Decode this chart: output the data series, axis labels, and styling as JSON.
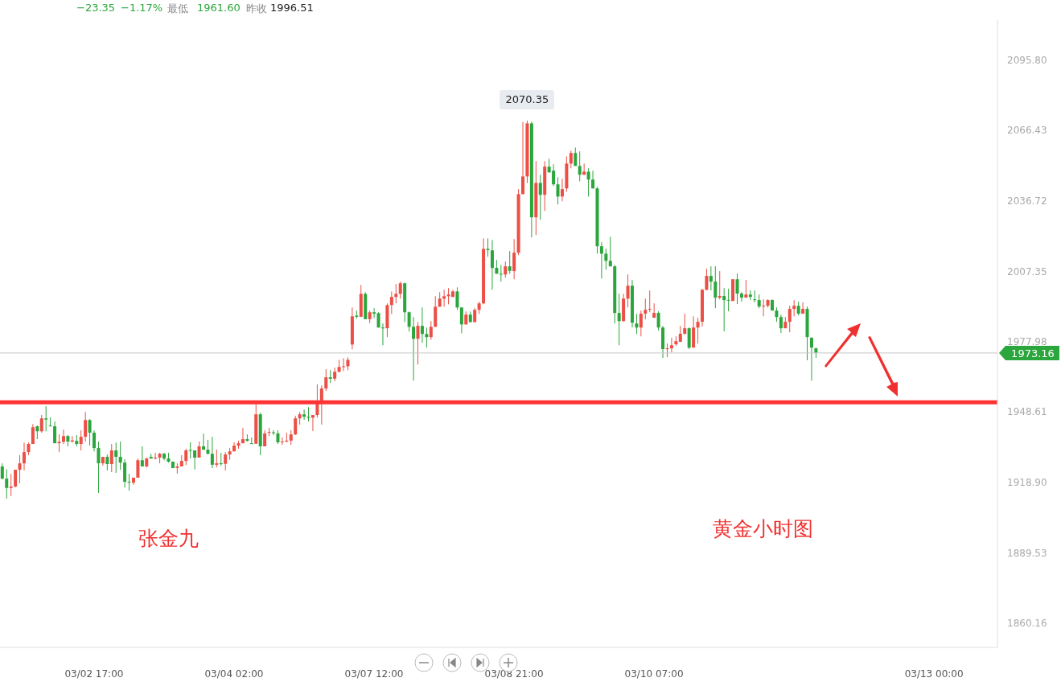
{
  "chart_data": {
    "type": "candlestick",
    "categories": [
      null,
      null,
      null,
      null,
      null,
      null,
      null,
      null,
      null,
      null,
      null,
      null,
      null,
      null,
      null,
      null,
      null,
      null,
      null,
      null,
      null,
      "03/02 17:00",
      null,
      null,
      null,
      null,
      null,
      null,
      null,
      null,
      null,
      null,
      null,
      null,
      null,
      null,
      null,
      null,
      null,
      null,
      null,
      null,
      null,
      null,
      null,
      null,
      null,
      null,
      null,
      null,
      null,
      null,
      null,
      "03/04 02:00",
      null,
      null,
      null,
      null,
      null,
      null,
      null,
      null,
      null,
      null,
      null,
      null,
      null,
      null,
      null,
      null,
      null,
      null,
      null,
      null,
      null,
      null,
      null,
      null,
      null,
      null,
      null,
      null,
      null,
      null,
      null,
      "03/07 12:00",
      null,
      null,
      null,
      null,
      null,
      null,
      null,
      null,
      null,
      null,
      null,
      null,
      null,
      null,
      null,
      null,
      null,
      null,
      null,
      null,
      null,
      null,
      null,
      null,
      null,
      null,
      null,
      null,
      null,
      null,
      null,
      "03/08 21:00",
      null,
      null,
      null,
      null,
      null,
      null,
      null,
      null,
      null,
      null,
      null,
      null,
      null,
      null,
      null,
      null,
      null,
      null,
      null,
      null,
      null,
      null,
      null,
      null,
      null,
      null,
      null,
      null,
      null,
      null,
      null,
      "03/10 07:00",
      null,
      null,
      null,
      null,
      null,
      null,
      null,
      null,
      null,
      null,
      null,
      null,
      null,
      null,
      null,
      null,
      null,
      null,
      null,
      null,
      null,
      null,
      null,
      null,
      null,
      null,
      null,
      null,
      null,
      null,
      null,
      null,
      null,
      null,
      null,
      null,
      null,
      null,
      null,
      null,
      null,
      null,
      null,
      null,
      null,
      null,
      null,
      null,
      null,
      null,
      null,
      null,
      null,
      null,
      null,
      null,
      null,
      null,
      null,
      null,
      null,
      null,
      null,
      "03/13 00:00",
      null,
      null,
      null,
      null,
      null,
      null,
      null,
      null,
      null,
      null,
      null,
      null,
      null,
      null
    ],
    "ohlc": [
      [
        1925.7,
        1927.0,
        1920.3,
        1920.6
      ],
      [
        1920.6,
        1924.5,
        1912.2,
        1916.7
      ],
      [
        1916.7,
        1922.6,
        1913.3,
        1917.3
      ],
      [
        1917.3,
        1924.3,
        1916.9,
        1924.3
      ],
      [
        1924.3,
        1930.4,
        1918.7,
        1927.0
      ],
      [
        1927.0,
        1935.7,
        1924.0,
        1931.7
      ],
      [
        1931.7,
        1935.7,
        1930.4,
        1935.1
      ],
      [
        1935.1,
        1943.4,
        1935.1,
        1942.1
      ],
      [
        1942.5,
        1942.8,
        1937.1,
        1940.4
      ],
      [
        1940.4,
        1947.2,
        1939.8,
        1945.8
      ],
      [
        1945.8,
        1950.9,
        1940.4,
        1945.3
      ],
      [
        1942.8,
        1946.2,
        1942.6,
        1942.6
      ],
      [
        1942.5,
        1944.5,
        1935.4,
        1935.4
      ],
      [
        1935.4,
        1939.1,
        1931.7,
        1936.0
      ],
      [
        1936.0,
        1941.1,
        1935.1,
        1938.4
      ],
      [
        1938.4,
        1938.8,
        1934.1,
        1936.1
      ],
      [
        1936.1,
        1938.4,
        1935.7,
        1936.6
      ],
      [
        1936.4,
        1938.8,
        1934.1,
        1935.1
      ],
      [
        1935.1,
        1940.8,
        1932.4,
        1938.1
      ],
      [
        1938.1,
        1948.5,
        1936.1,
        1945.1
      ],
      [
        1945.1,
        1945.5,
        1934.4,
        1939.8
      ],
      [
        1939.8,
        1940.7,
        1932.0,
        1933.4
      ],
      [
        1933.4,
        1936.1,
        1914.6,
        1927.0
      ],
      [
        1927.0,
        1929.7,
        1926.0,
        1929.7
      ],
      [
        1929.7,
        1930.7,
        1924.0,
        1926.7
      ],
      [
        1926.7,
        1935.1,
        1923.3,
        1932.4
      ],
      [
        1932.4,
        1935.7,
        1923.0,
        1929.7
      ],
      [
        1929.7,
        1936.1,
        1924.3,
        1927.3
      ],
      [
        1927.3,
        1928.7,
        1916.9,
        1919.3
      ],
      [
        1919.3,
        1922.6,
        1915.6,
        1919.1
      ],
      [
        1918.9,
        1921.0,
        1918.0,
        1921.0
      ],
      [
        1921.0,
        1929.0,
        1921.0,
        1928.3
      ],
      [
        1928.3,
        1934.1,
        1925.7,
        1925.7
      ],
      [
        1925.7,
        1929.4,
        1925.3,
        1929.0
      ],
      [
        1929.7,
        1931.0,
        1929.0,
        1929.0
      ],
      [
        1929.0,
        1931.4,
        1928.7,
        1929.4
      ],
      [
        1929.4,
        1931.4,
        1927.0,
        1931.0
      ],
      [
        1931.0,
        1931.4,
        1928.3,
        1929.0
      ],
      [
        1929.0,
        1931.4,
        1927.3,
        1927.7
      ],
      [
        1927.7,
        1927.7,
        1925.0,
        1925.0
      ],
      [
        1925.1,
        1927.0,
        1922.7,
        1925.7
      ],
      [
        1925.7,
        1930.4,
        1925.7,
        1928.0
      ],
      [
        1928.0,
        1933.1,
        1926.3,
        1932.4
      ],
      [
        1932.6,
        1935.8,
        1929.0,
        1932.4
      ],
      [
        1932.4,
        1932.4,
        1924.4,
        1929.4
      ],
      [
        1929.4,
        1936.1,
        1929.4,
        1934.1
      ],
      [
        1934.1,
        1939.4,
        1932.7,
        1932.7
      ],
      [
        1932.7,
        1936.8,
        1930.7,
        1931.0
      ],
      [
        1931.0,
        1938.1,
        1925.0,
        1926.4
      ],
      [
        1926.4,
        1932.7,
        1925.3,
        1927.0
      ],
      [
        1927.0,
        1931.4,
        1926.0,
        1926.8
      ],
      [
        1926.8,
        1931.7,
        1924.0,
        1930.7
      ],
      [
        1930.7,
        1933.4,
        1928.5,
        1932.0
      ],
      [
        1932.0,
        1935.8,
        1932.0,
        1934.4
      ],
      [
        1934.4,
        1936.4,
        1933.1,
        1935.4
      ],
      [
        1935.4,
        1941.8,
        1935.4,
        1937.1
      ],
      [
        1937.1,
        1939.1,
        1936.1,
        1936.4
      ],
      [
        1935.4,
        1937.8,
        1935.2,
        1935.2
      ],
      [
        1935.2,
        1951.7,
        1935.2,
        1947.5
      ],
      [
        1947.5,
        1948.2,
        1930.4,
        1934.1
      ],
      [
        1934.1,
        1940.8,
        1934.1,
        1939.5
      ],
      [
        1939.8,
        1941.8,
        1938.4,
        1940.1
      ],
      [
        1940.0,
        1940.8,
        1938.8,
        1939.7
      ],
      [
        1939.5,
        1940.8,
        1935.1,
        1935.8
      ],
      [
        1935.8,
        1937.8,
        1934.7,
        1936.1
      ],
      [
        1936.1,
        1939.8,
        1935.8,
        1936.5
      ],
      [
        1936.5,
        1940.8,
        1934.7,
        1939.1
      ],
      [
        1939.1,
        1946.9,
        1938.8,
        1945.8
      ],
      [
        1945.8,
        1948.5,
        1943.2,
        1947.5
      ],
      [
        1947.5,
        1949.5,
        1945.2,
        1946.5
      ],
      [
        1946.5,
        1950.5,
        1944.5,
        1946.1
      ],
      [
        1946.1,
        1947.2,
        1940.5,
        1947.2
      ],
      [
        1947.2,
        1960.0,
        1946.2,
        1951.9
      ],
      [
        1951.9,
        1959.6,
        1943.2,
        1958.3
      ],
      [
        1958.3,
        1966.4,
        1957.3,
        1963.0
      ],
      [
        1963.0,
        1966.0,
        1960.6,
        1962.4
      ],
      [
        1962.4,
        1967.0,
        1961.3,
        1965.3
      ],
      [
        1965.3,
        1970.3,
        1965.0,
        1967.3
      ],
      [
        1967.3,
        1971.0,
        1965.6,
        1967.6
      ],
      [
        1967.6,
        1971.3,
        1966.0,
        1970.3
      ],
      [
        1976.7,
        1992.2,
        1974.7,
        1988.5
      ],
      [
        1988.8,
        1990.9,
        1987.5,
        1988.3
      ],
      [
        1988.3,
        2001.6,
        1988.3,
        1997.9
      ],
      [
        1997.9,
        1998.6,
        1987.3,
        1987.3
      ],
      [
        1987.3,
        1990.9,
        1985.6,
        1990.2
      ],
      [
        1990.2,
        1991.9,
        1987.8,
        1989.6
      ],
      [
        1989.8,
        1990.2,
        1983.8,
        1983.8
      ],
      [
        1983.8,
        1985.5,
        1976.4,
        1983.6
      ],
      [
        1983.5,
        1993.9,
        1979.8,
        1993.2
      ],
      [
        1993.2,
        1998.9,
        1989.5,
        1996.6
      ],
      [
        1996.6,
        2002.0,
        1993.9,
        1997.9
      ],
      [
        1997.9,
        2003.0,
        1995.9,
        2002.3
      ],
      [
        2002.3,
        2002.6,
        1986.1,
        1990.2
      ],
      [
        1990.2,
        1990.5,
        1982.1,
        1984.1
      ],
      [
        1984.1,
        1988.2,
        1961.6,
        1979.1
      ],
      [
        1979.1,
        1986.1,
        1968.3,
        1984.5
      ],
      [
        1984.5,
        1992.2,
        1977.4,
        1981.1
      ],
      [
        1981.1,
        1983.8,
        1975.4,
        1979.8
      ],
      [
        1979.8,
        1986.5,
        1978.7,
        1984.1
      ],
      [
        1984.1,
        1996.9,
        1984.1,
        1992.5
      ],
      [
        1992.5,
        1998.6,
        1992.5,
        1995.9
      ],
      [
        1995.9,
        1999.6,
        1992.5,
        1996.9
      ],
      [
        1996.9,
        2000.3,
        1993.5,
        1997.6
      ],
      [
        1996.6,
        1999.6,
        1996.6,
        1998.9
      ],
      [
        1998.9,
        2000.6,
        1991.2,
        1992.2
      ],
      [
        1992.2,
        1992.2,
        1981.4,
        1985.1
      ],
      [
        1985.1,
        1990.5,
        1985.1,
        1989.2
      ],
      [
        1989.2,
        1990.5,
        1985.8,
        1986.1
      ],
      [
        1986.1,
        1991.9,
        1985.8,
        1991.2
      ],
      [
        1991.2,
        1994.6,
        1989.5,
        1993.9
      ],
      [
        1993.9,
        2021.1,
        1993.5,
        2016.7
      ],
      [
        2016.7,
        2021.1,
        2013.4,
        2016.2
      ],
      [
        2016.1,
        2020.4,
        1999.6,
        2008.7
      ],
      [
        2008.8,
        2012.1,
        2006.3,
        2006.3
      ],
      [
        2006.3,
        2010.0,
        2003.0,
        2006.1
      ],
      [
        2006.0,
        2011.4,
        2004.7,
        2009.4
      ],
      [
        2009.4,
        2015.8,
        2006.3,
        2007.5
      ],
      [
        2007.4,
        2020.8,
        2004.0,
        2015.1
      ],
      [
        2015.1,
        2041.7,
        2014.1,
        2039.6
      ],
      [
        2039.6,
        2069.8,
        2039.6,
        2047.0
      ],
      [
        2047.0,
        2070.35,
        2044.3,
        2069.2
      ],
      [
        2069.2,
        2069.9,
        2021.5,
        2029.9
      ],
      [
        2029.9,
        2053.4,
        2022.5,
        2044.3
      ],
      [
        2044.3,
        2047.7,
        2028.9,
        2039.3
      ],
      [
        2039.3,
        2053.4,
        2032.6,
        2051.1
      ],
      [
        2051.1,
        2054.4,
        2048.7,
        2048.7
      ],
      [
        2049.4,
        2052.1,
        2043.0,
        2043.7
      ],
      [
        2043.7,
        2046.7,
        2035.3,
        2038.6
      ],
      [
        2038.6,
        2046.0,
        2036.6,
        2041.7
      ],
      [
        2042.0,
        2055.4,
        2040.6,
        2052.4
      ],
      [
        2052.4,
        2057.8,
        2050.4,
        2056.8
      ],
      [
        2056.8,
        2059.1,
        2051.4,
        2051.4
      ],
      [
        2051.4,
        2057.5,
        2045.0,
        2047.7
      ],
      [
        2047.7,
        2052.4,
        2047.7,
        2049.0
      ],
      [
        2049.0,
        2050.4,
        2038.6,
        2045.7
      ],
      [
        2045.7,
        2049.4,
        2042.0,
        2042.0
      ],
      [
        2042.0,
        2042.7,
        2014.7,
        2017.8
      ],
      [
        2017.8,
        2019.5,
        2004.3,
        2014.7
      ],
      [
        2014.7,
        2016.8,
        2008.0,
        2011.7
      ],
      [
        2011.7,
        2021.8,
        2009.4,
        2009.4
      ],
      [
        2009.4,
        2010.0,
        1985.5,
        1989.9
      ],
      [
        1989.9,
        1997.9,
        1976.4,
        1986.5
      ],
      [
        1986.5,
        1997.9,
        1986.2,
        1995.9
      ],
      [
        1995.9,
        2006.0,
        1992.2,
        2001.3
      ],
      [
        2001.3,
        2003.6,
        1983.8,
        1985.8
      ],
      [
        1985.5,
        1989.5,
        1981.1,
        1983.8
      ],
      [
        1983.8,
        1990.9,
        1980.1,
        1989.6
      ],
      [
        1989.6,
        1995.9,
        1987.2,
        1991.2
      ],
      [
        1991.4,
        1999.3,
        1990.2,
        1991.6
      ],
      [
        1987.9,
        1993.9,
        1987.9,
        1989.9
      ],
      [
        1989.9,
        1990.6,
        1982.5,
        1983.8
      ],
      [
        1983.8,
        1984.5,
        1971.1,
        1974.8
      ],
      [
        1974.8,
        1977.1,
        1971.4,
        1975.1
      ],
      [
        1975.1,
        1979.5,
        1973.4,
        1976.4
      ],
      [
        1976.8,
        1980.1,
        1976.1,
        1978.1
      ],
      [
        1977.8,
        1984.5,
        1977.8,
        1981.2
      ],
      [
        1981.2,
        1989.6,
        1980.8,
        1983.5
      ],
      [
        1983.5,
        1983.8,
        1974.8,
        1975.4
      ],
      [
        1975.4,
        1988.5,
        1975.4,
        1983.8
      ],
      [
        1983.8,
        1987.9,
        1977.1,
        1986.2
      ],
      [
        1986.2,
        2000.0,
        1984.2,
        1999.6
      ],
      [
        1999.6,
        2008.4,
        1999.3,
        2005.4
      ],
      [
        2005.4,
        2009.4,
        1999.3,
        2003.0
      ],
      [
        2003.0,
        2009.4,
        1991.9,
        1996.3
      ],
      [
        1996.3,
        2007.4,
        1995.6,
        1997.0
      ],
      [
        1997.0,
        2000.3,
        1982.2,
        1995.3
      ],
      [
        1995.4,
        2000.0,
        1990.6,
        1995.2
      ],
      [
        1994.9,
        2004.0,
        1994.9,
        2004.0
      ],
      [
        2004.0,
        2006.4,
        1993.6,
        1998.0
      ],
      [
        1998.0,
        1998.6,
        1994.6,
        1996.3
      ],
      [
        1996.3,
        2003.7,
        1996.3,
        1997.6
      ],
      [
        1997.6,
        1999.3,
        1995.3,
        1996.6
      ],
      [
        1995.6,
        1999.3,
        1994.3,
        1995.4
      ],
      [
        1995.3,
        1997.6,
        1991.9,
        1992.6
      ],
      [
        1992.6,
        1995.6,
        1988.5,
        1992.9
      ],
      [
        1992.9,
        1995.6,
        1992.2,
        1995.3
      ],
      [
        1995.3,
        1995.6,
        1990.9,
        1990.9
      ],
      [
        1990.9,
        1992.2,
        1986.2,
        1988.2
      ],
      [
        1988.2,
        1989.2,
        1981.5,
        1983.5
      ],
      [
        1983.5,
        1988.2,
        1983.5,
        1986.2
      ],
      [
        1986.2,
        1992.9,
        1981.8,
        1991.6
      ],
      [
        1991.6,
        1995.3,
        1988.5,
        1992.9
      ],
      [
        1992.9,
        1994.6,
        1988.9,
        1989.6
      ],
      [
        1989.6,
        1994.3,
        1989.6,
        1991.6
      ],
      [
        1991.6,
        1992.6,
        1970.1,
        1979.8
      ],
      [
        1979.5,
        1979.8,
        1961.6,
        1975.4
      ],
      [
        1975.1,
        1975.4,
        1971.1,
        1973.16
      ],
      null,
      null,
      null,
      null,
      null,
      null,
      null,
      null,
      null,
      null,
      null,
      null,
      null,
      null,
      null,
      null,
      null,
      null,
      null,
      null,
      null,
      null,
      null,
      null,
      null,
      null,
      null,
      null,
      null,
      null,
      null,
      null,
      null,
      null,
      null,
      null,
      null,
      null,
      null,
      null,
      null
    ],
    "colors": [
      "#2ba63c",
      "#2ba63c",
      "#eb4f45",
      "#eb4f45",
      "#eb4f45",
      "#eb4f45",
      "#eb4f45",
      "#eb4f45",
      "#2ba63c",
      "#eb4f45",
      "#2ba63c",
      "#2ba63c",
      "#2ba63c",
      "#eb4f45",
      "#eb4f45",
      "#2ba63c",
      "#eb4f45",
      "#2ba63c",
      "#eb4f45",
      "#eb4f45",
      "#2ba63c",
      "#2ba63c",
      "#2ba63c",
      "#eb4f45",
      "#2ba63c",
      "#eb4f45",
      "#2ba63c",
      "#2ba63c",
      "#2ba63c",
      "#2ba63c",
      "#eb4f45",
      "#eb4f45",
      "#2ba63c",
      "#eb4f45",
      "#2ba63c",
      "#eb4f45",
      "#eb4f45",
      "#2ba63c",
      "#2ba63c",
      "#2ba63c",
      "#eb4f45",
      "#eb4f45",
      "#eb4f45",
      "#2ba63c",
      "#2ba63c",
      "#eb4f45",
      "#2ba63c",
      "#2ba63c",
      "#2ba63c",
      "#eb4f45",
      "#2ba63c",
      "#eb4f45",
      "#eb4f45",
      "#eb4f45",
      "#eb4f45",
      "#eb4f45",
      "#2ba63c",
      "#2ba63c",
      "#eb4f45",
      "#2ba63c",
      "#eb4f45",
      "#eb4f45",
      "#2ba63c",
      "#2ba63c",
      "#eb4f45",
      "#eb4f45",
      "#eb4f45",
      "#eb4f45",
      "#eb4f45",
      "#2ba63c",
      "#2ba63c",
      "#eb4f45",
      "#eb4f45",
      "#eb4f45",
      "#eb4f45",
      "#2ba63c",
      "#eb4f45",
      "#eb4f45",
      "#eb4f45",
      "#eb4f45",
      "#eb4f45",
      "#2ba63c",
      "#eb4f45",
      "#2ba63c",
      "#eb4f45",
      "#2ba63c",
      "#2ba63c",
      "#2ba63c",
      "#eb4f45",
      "#eb4f45",
      "#eb4f45",
      "#eb4f45",
      "#2ba63c",
      "#2ba63c",
      "#2ba63c",
      "#eb4f45",
      "#2ba63c",
      "#2ba63c",
      "#eb4f45",
      "#eb4f45",
      "#eb4f45",
      "#eb4f45",
      "#eb4f45",
      "#eb4f45",
      "#2ba63c",
      "#2ba63c",
      "#eb4f45",
      "#2ba63c",
      "#eb4f45",
      "#eb4f45",
      "#eb4f45",
      "#2ba63c",
      "#2ba63c",
      "#2ba63c",
      "#2ba63c",
      "#eb4f45",
      "#2ba63c",
      "#eb4f45",
      "#eb4f45",
      "#eb4f45",
      "#eb4f45",
      "#2ba63c",
      "#eb4f45",
      "#2ba63c",
      "#eb4f45",
      "#2ba63c",
      "#2ba63c",
      "#2ba63c",
      "#eb4f45",
      "#eb4f45",
      "#eb4f45",
      "#2ba63c",
      "#2ba63c",
      "#eb4f45",
      "#2ba63c",
      "#2ba63c",
      "#2ba63c",
      "#2ba63c",
      "#2ba63c",
      "#2ba63c",
      "#2ba63c",
      "#2ba63c",
      "#eb4f45",
      "#eb4f45",
      "#2ba63c",
      "#2ba63c",
      "#eb4f45",
      "#eb4f45",
      "#eb4f45",
      "#eb4f45",
      "#2ba63c",
      "#2ba63c",
      "#eb4f45",
      "#eb4f45",
      "#eb4f45",
      "#eb4f45",
      "#eb4f45",
      "#2ba63c",
      "#eb4f45",
      "#eb4f45",
      "#eb4f45",
      "#eb4f45",
      "#2ba63c",
      "#2ba63c",
      "#eb4f45",
      "#2ba63c",
      "#2ba63c",
      "#eb4f45",
      "#2ba63c",
      "#2ba63c",
      "#eb4f45",
      "#2ba63c",
      "#2ba63c",
      "#2ba63c",
      "#eb4f45",
      "#eb4f45",
      "#2ba63c",
      "#2ba63c",
      "#2ba63c",
      "#eb4f45",
      "#eb4f45",
      "#eb4f45",
      "#2ba63c",
      "#eb4f45",
      "#2ba63c",
      "#2ba63c",
      "#2ba63c",
      null,
      null,
      null,
      null,
      null,
      null,
      null,
      null,
      null,
      null,
      null,
      null,
      null,
      null,
      null,
      null,
      null,
      null,
      null,
      null,
      null,
      null,
      null,
      null,
      null,
      null,
      null,
      null,
      null,
      null,
      null,
      null,
      null,
      null,
      null,
      null,
      null,
      null,
      null,
      null,
      null
    ],
    "ylim": [
      1850,
      2112.4
    ],
    "yticks": [
      1860.16,
      1889.53,
      {
        "value": 1918.9,
        "label": "1918.90"
      },
      1948.61,
      1977.98,
      2007.35,
      2036.72,
      2066.43,
      {
        "value": 2095.8,
        "label": "2095.80"
      }
    ],
    "ref_lines": [
      {
        "axis": "y",
        "value": 1952.5,
        "color": "#ff3333"
      },
      {
        "axis": "y",
        "value": 1973.16,
        "label": "1973.16",
        "color": "#c8c8c8"
      }
    ],
    "annotations": [
      "−23.35",
      "−1.17%",
      "最低",
      "1961.60",
      "昨收",
      "1996.51",
      "张金九",
      "黄金小时图",
      {
        "text": "2070.35",
        "y": 2070.35
      }
    ]
  }
}
